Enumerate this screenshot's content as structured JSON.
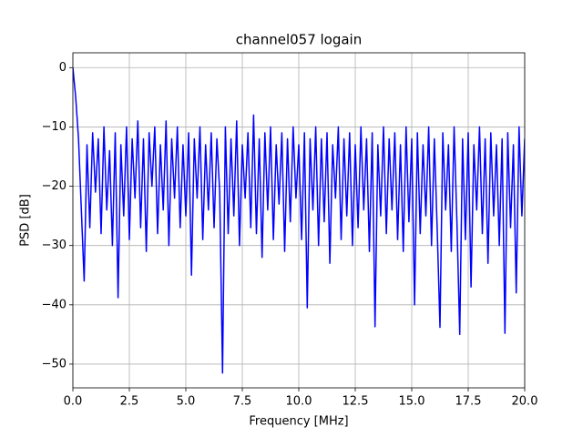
{
  "chart_data": {
    "type": "line",
    "title": "channel057 logain",
    "xlabel": "Frequency [MHz]",
    "ylabel": "PSD [dB]",
    "x": [
      0,
      0.125,
      0.25,
      0.375,
      0.5,
      0.625,
      0.75,
      0.875,
      1,
      1.125,
      1.25,
      1.375,
      1.5,
      1.625,
      1.75,
      1.875,
      2,
      2.125,
      2.25,
      2.375,
      2.5,
      2.625,
      2.75,
      2.875,
      3,
      3.125,
      3.25,
      3.375,
      3.5,
      3.625,
      3.75,
      3.875,
      4,
      4.125,
      4.25,
      4.375,
      4.5,
      4.625,
      4.75,
      4.875,
      5,
      5.125,
      5.25,
      5.375,
      5.5,
      5.625,
      5.75,
      5.875,
      6,
      6.125,
      6.25,
      6.375,
      6.5,
      6.625,
      6.75,
      6.875,
      7,
      7.125,
      7.25,
      7.375,
      7.5,
      7.625,
      7.75,
      7.875,
      8,
      8.125,
      8.25,
      8.375,
      8.5,
      8.625,
      8.75,
      8.875,
      9,
      9.125,
      9.25,
      9.375,
      9.5,
      9.625,
      9.75,
      9.875,
      10,
      10.125,
      10.25,
      10.375,
      10.5,
      10.625,
      10.75,
      10.875,
      11,
      11.125,
      11.25,
      11.375,
      11.5,
      11.625,
      11.75,
      11.875,
      12,
      12.125,
      12.25,
      12.375,
      12.5,
      12.625,
      12.75,
      12.875,
      13,
      13.125,
      13.25,
      13.375,
      13.5,
      13.625,
      13.75,
      13.875,
      14,
      14.125,
      14.25,
      14.375,
      14.5,
      14.625,
      14.75,
      14.875,
      15,
      15.125,
      15.25,
      15.375,
      15.5,
      15.625,
      15.75,
      15.875,
      16,
      16.125,
      16.25,
      16.375,
      16.5,
      16.625,
      16.75,
      16.875,
      17,
      17.125,
      17.25,
      17.375,
      17.5,
      17.625,
      17.75,
      17.875,
      18,
      18.125,
      18.25,
      18.375,
      18.5,
      18.625,
      18.75,
      18.875,
      19,
      19.125,
      19.25,
      19.375,
      19.5,
      19.625,
      19.75,
      19.875,
      20
    ],
    "series": [
      {
        "name": "PSD",
        "color": "#0000ff",
        "values": [
          0,
          -5,
          -12,
          -24,
          -36,
          -13,
          -27,
          -11,
          -21,
          -12,
          -28,
          -10,
          -24,
          -14,
          -30,
          -11,
          -38.8,
          -13,
          -25,
          -10,
          -29,
          -12,
          -22,
          -9,
          -27,
          -12,
          -31,
          -11,
          -20,
          -10,
          -28,
          -13,
          -24,
          -9,
          -30,
          -12,
          -22,
          -10,
          -27,
          -13,
          -25,
          -11,
          -35,
          -12,
          -22,
          -10,
          -29,
          -13,
          -24,
          -11,
          -27,
          -12,
          -21,
          -51.5,
          -10,
          -28,
          -12,
          -25,
          -9,
          -30,
          -13,
          -22,
          -11,
          -27,
          -8,
          -28,
          -12,
          -32,
          -11,
          -24,
          -10,
          -29,
          -13,
          -23,
          -11,
          -31,
          -12,
          -26,
          -10,
          -22,
          -13,
          -29,
          -11,
          -40.5,
          -12,
          -24,
          -10,
          -30,
          -12,
          -26,
          -11,
          -33,
          -13,
          -22,
          -10,
          -29,
          -12,
          -25,
          -11,
          -30,
          -13,
          -27,
          -10,
          -24,
          -12,
          -31,
          -11,
          -43.7,
          -13,
          -25,
          -10,
          -28,
          -12,
          -24,
          -11,
          -29,
          -13,
          -31,
          -10,
          -26,
          -12,
          -40,
          -11,
          -28,
          -13,
          -25,
          -10,
          -30,
          -12,
          -27,
          -43.8,
          -11,
          -24,
          -13,
          -31,
          -10,
          -26,
          -45,
          -12,
          -29,
          -11,
          -37,
          -13,
          -24,
          -10,
          -28,
          -12,
          -33,
          -11,
          -25,
          -13,
          -30,
          -12,
          -44.8,
          -11,
          -27,
          -13,
          -38,
          -10,
          -25,
          -12
        ]
      }
    ],
    "xlim": [
      0,
      20
    ],
    "xticks": [
      {
        "value": 0,
        "label": "0.0"
      },
      {
        "value": 2.5,
        "label": "2.5"
      },
      {
        "value": 5,
        "label": "5.0"
      },
      {
        "value": 7.5,
        "label": "7.5"
      },
      {
        "value": 10,
        "label": "10.0"
      },
      {
        "value": 12.5,
        "label": "12.5"
      },
      {
        "value": 15,
        "label": "15.0"
      },
      {
        "value": 17.5,
        "label": "17.5"
      },
      {
        "value": 20,
        "label": "20.0"
      }
    ],
    "ylim": [
      -54,
      2.5
    ],
    "yticks": [
      {
        "value": -50,
        "label": "−50"
      },
      {
        "value": -40,
        "label": "−40"
      },
      {
        "value": -30,
        "label": "−30"
      },
      {
        "value": -20,
        "label": "−20"
      },
      {
        "value": -10,
        "label": "−10"
      },
      0
    ],
    "grid": true
  }
}
